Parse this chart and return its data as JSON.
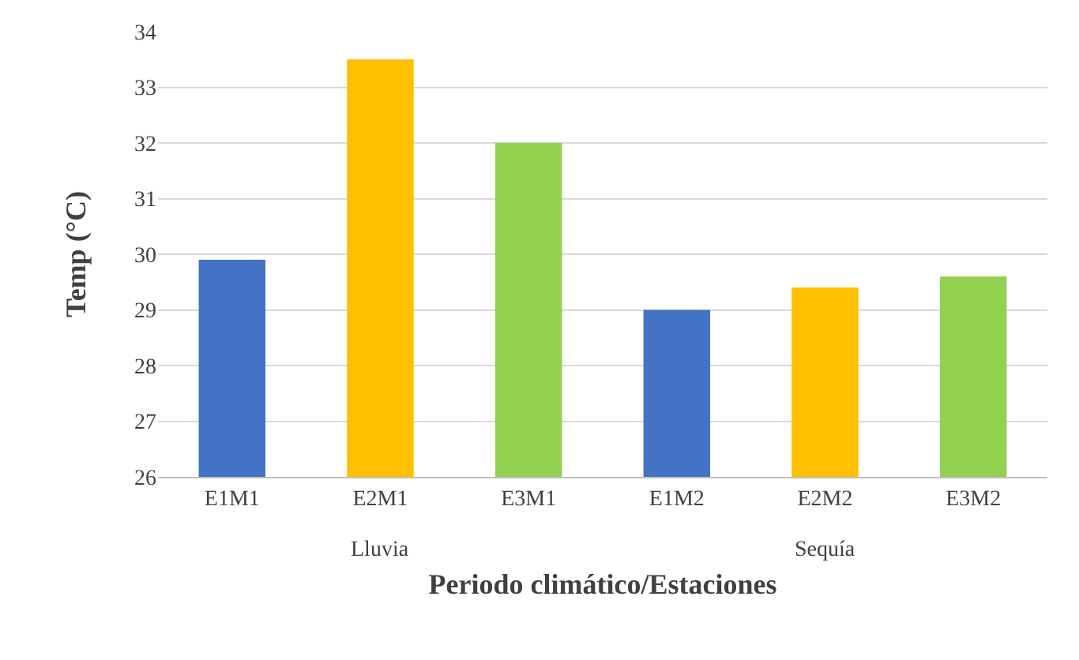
{
  "chart_data": {
    "type": "bar",
    "categories": [
      "E1M1",
      "E2M1",
      "E3M1",
      "E1M2",
      "E2M2",
      "E3M2"
    ],
    "values": [
      29.9,
      33.5,
      32.0,
      29.0,
      29.4,
      29.6
    ],
    "colors": [
      "#4472c4",
      "#ffc000",
      "#92d050",
      "#4472c4",
      "#ffc000",
      "#92d050"
    ],
    "ylim": [
      26,
      34
    ],
    "yticks": [
      26,
      27,
      28,
      29,
      30,
      31,
      32,
      33,
      34
    ],
    "grid": "y",
    "xlabel": "Periodo climático/Estaciones",
    "ylabel": "Temp (°C)",
    "annotations": [
      "Lluvia",
      "Sequía"
    ]
  }
}
